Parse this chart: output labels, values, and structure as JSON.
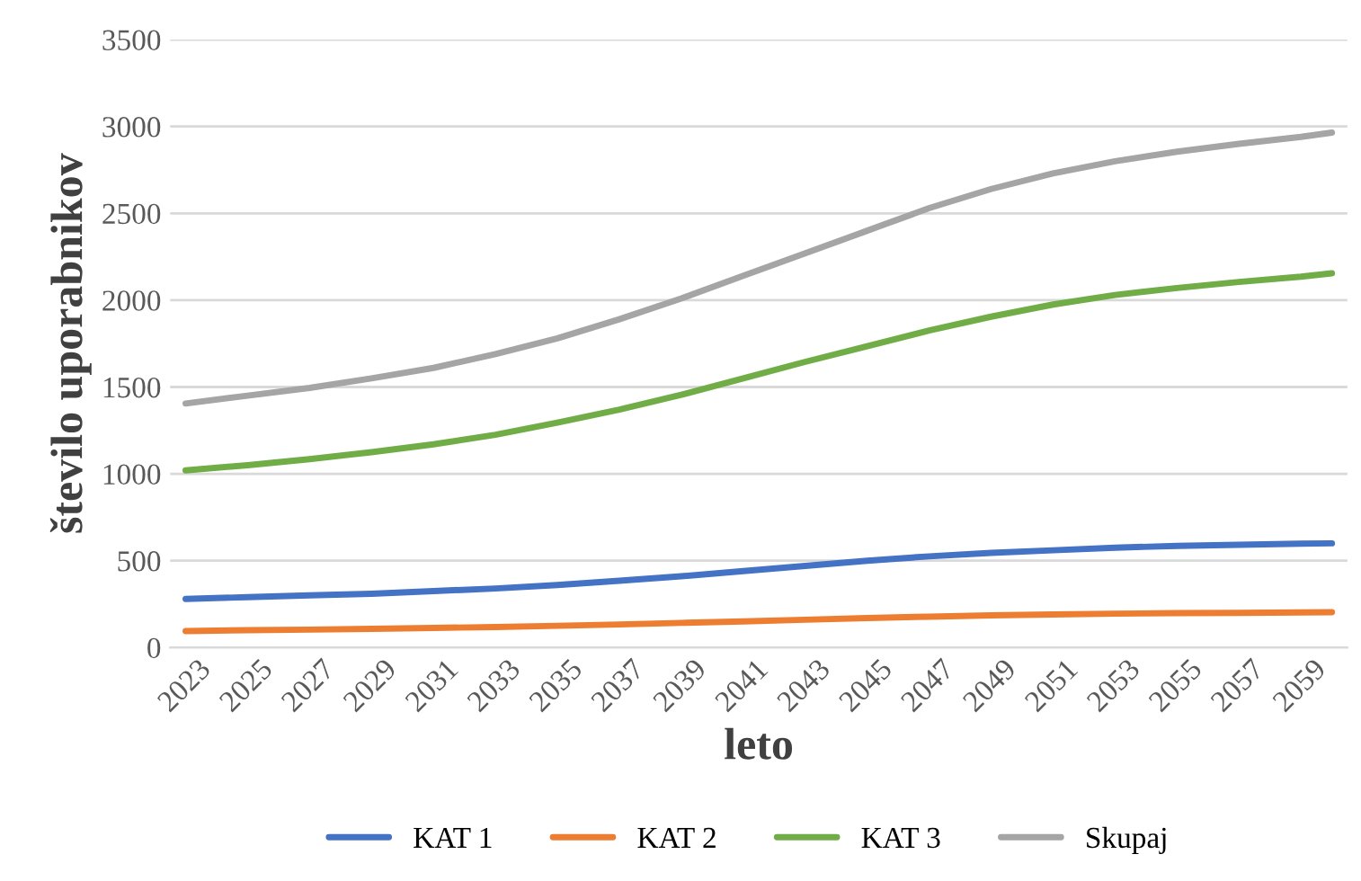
{
  "chart_data": {
    "type": "line",
    "xlabel": "leto",
    "ylabel": "število uporabnikov",
    "x": [
      2023,
      2025,
      2027,
      2029,
      2031,
      2033,
      2035,
      2037,
      2039,
      2041,
      2043,
      2045,
      2047,
      2049,
      2051,
      2053,
      2055,
      2057,
      2059,
      2060
    ],
    "xlim": [
      2022.5,
      2060.5
    ],
    "xticks": [
      2023,
      2025,
      2027,
      2029,
      2031,
      2033,
      2035,
      2037,
      2039,
      2041,
      2043,
      2045,
      2047,
      2049,
      2051,
      2053,
      2055,
      2057,
      2059
    ],
    "ylim": [
      0,
      3500
    ],
    "yticks": [
      0,
      500,
      1000,
      1500,
      2000,
      2500,
      3000,
      3500
    ],
    "grid": "y",
    "legend": "bottom",
    "marker": "none",
    "line_style": "solid",
    "series": [
      {
        "name": "KAT 1",
        "color": "#4472c4",
        "values": [
          280,
          290,
          300,
          310,
          325,
          340,
          360,
          385,
          410,
          440,
          470,
          500,
          525,
          545,
          560,
          575,
          585,
          592,
          598,
          600
        ]
      },
      {
        "name": "KAT 2",
        "color": "#ed7d31",
        "values": [
          95,
          100,
          103,
          108,
          113,
          118,
          125,
          133,
          142,
          150,
          160,
          170,
          178,
          185,
          190,
          195,
          198,
          200,
          202,
          203
        ]
      },
      {
        "name": "KAT 3",
        "color": "#70ad47",
        "values": [
          1020,
          1050,
          1085,
          1125,
          1170,
          1225,
          1295,
          1370,
          1455,
          1550,
          1645,
          1735,
          1825,
          1905,
          1975,
          2030,
          2070,
          2105,
          2135,
          2155
        ]
      },
      {
        "name": "Skupaj",
        "color": "#a5a5a5",
        "values": [
          1405,
          1450,
          1495,
          1550,
          1610,
          1690,
          1780,
          1890,
          2010,
          2140,
          2270,
          2400,
          2530,
          2640,
          2730,
          2800,
          2855,
          2900,
          2940,
          2965
        ]
      }
    ]
  }
}
